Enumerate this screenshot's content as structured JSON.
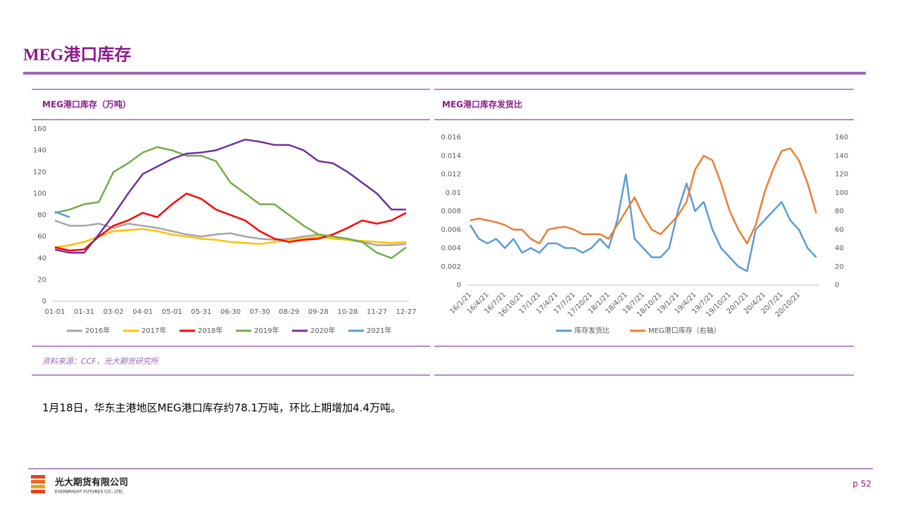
{
  "header": {
    "title": "MEG港口库存"
  },
  "source": "资料来源：CCF，光大期货研究所",
  "body": "1月18日，华东主港地区MEG港口库存约78.1万吨，环比上期增加4.4万吨。",
  "footer": {
    "company": "光大期货有限公司",
    "company_en": "EVERBRIGHT FUTURES CO., LTD.",
    "page": "p 52"
  },
  "chart_data": [
    {
      "type": "line",
      "title": "MEG港口库存（万吨）",
      "categories": [
        "01-01",
        null,
        "01-31",
        null,
        "03-02",
        null,
        "04-01",
        null,
        "05-01",
        null,
        "05-31",
        null,
        "06-30",
        null,
        "07-30",
        null,
        "08-29",
        null,
        "09-28",
        null,
        "10-28",
        null,
        "11-27",
        null,
        "12-27"
      ],
      "ylim": [
        0,
        160
      ],
      "yticks": [
        0,
        20,
        40,
        60,
        80,
        100,
        120,
        140,
        160
      ],
      "series": [
        {
          "name": "2016年",
          "color": "#a5a5a5",
          "values": [
            75,
            70,
            70,
            72,
            68,
            72,
            70,
            68,
            65,
            62,
            60,
            62,
            63,
            60,
            58,
            57,
            58,
            60,
            62,
            60,
            57,
            55,
            52,
            52,
            53
          ]
        },
        {
          "name": "2017年",
          "color": "#ffc000",
          "values": [
            50,
            52,
            55,
            60,
            65,
            66,
            67,
            65,
            62,
            60,
            58,
            57,
            55,
            54,
            53,
            55,
            57,
            58,
            60,
            58,
            57,
            56,
            55,
            54,
            55
          ]
        },
        {
          "name": "2018年",
          "color": "#ff0000",
          "values": [
            50,
            47,
            48,
            60,
            70,
            75,
            82,
            78,
            90,
            100,
            95,
            85,
            80,
            75,
            65,
            58,
            55,
            57,
            58,
            62,
            68,
            75,
            72,
            75,
            82
          ]
        },
        {
          "name": "2019年",
          "color": "#70ad47",
          "values": [
            82,
            85,
            90,
            92,
            120,
            128,
            138,
            143,
            140,
            135,
            135,
            130,
            110,
            100,
            90,
            90,
            80,
            70,
            62,
            60,
            58,
            55,
            45,
            40,
            50
          ]
        },
        {
          "name": "2020年",
          "color": "#7030a0",
          "values": [
            48,
            45,
            45,
            62,
            80,
            100,
            118,
            125,
            132,
            137,
            138,
            140,
            145,
            150,
            148,
            145,
            145,
            140,
            130,
            128,
            120,
            110,
            100,
            85,
            85
          ]
        },
        {
          "name": "2021年",
          "color": "#5b9bd5",
          "values": [
            83,
            78,
            null,
            null,
            null,
            null,
            null,
            null,
            null,
            null,
            null,
            null,
            null,
            null,
            null,
            null,
            null,
            null,
            null,
            null,
            null,
            null,
            null,
            null,
            null
          ]
        }
      ]
    },
    {
      "type": "line",
      "title": "MEG港口库存发货比",
      "categories": [
        "16/1/21",
        null,
        "16/4/21",
        null,
        "16/7/21",
        null,
        "16/10/21",
        null,
        "17/1/21",
        null,
        "17/4/21",
        null,
        "17/7/21",
        null,
        "17/10/21",
        null,
        "18/1/21",
        null,
        "18/4/21",
        null,
        "18/7/21",
        null,
        "18/10/21",
        null,
        "19/1/21",
        null,
        "19/4/21",
        null,
        "19/7/21",
        null,
        "19/10/21",
        null,
        "20/1/21",
        null,
        "20/4/21",
        null,
        "20/7/21",
        null,
        "20/10/21",
        null,
        null
      ],
      "ylim": [
        0,
        0.016
      ],
      "yticks": [
        0,
        0.002,
        0.004,
        0.006,
        0.008,
        0.01,
        0.012,
        0.014,
        0.016
      ],
      "y2lim": [
        0,
        160
      ],
      "y2ticks": [
        0,
        20,
        40,
        60,
        80,
        100,
        120,
        140,
        160
      ],
      "series": [
        {
          "name": "库存发货比",
          "color": "#5b9bd5",
          "values": [
            0.0065,
            0.005,
            0.0045,
            0.005,
            0.004,
            0.005,
            0.0035,
            0.004,
            0.0035,
            0.0045,
            0.0045,
            0.004,
            0.004,
            0.0035,
            0.004,
            0.005,
            0.004,
            0.007,
            0.012,
            0.005,
            0.004,
            0.003,
            0.003,
            0.004,
            0.008,
            0.011,
            0.008,
            0.009,
            0.006,
            0.004,
            0.003,
            0.002,
            0.0015,
            0.006,
            0.007,
            0.008,
            0.009,
            0.007,
            0.006,
            0.004,
            0.003
          ]
        },
        {
          "name": "MEG港口库存（右轴）",
          "color": "#ed7d31",
          "axis": "y2",
          "values": [
            70,
            72,
            70,
            68,
            65,
            60,
            60,
            50,
            45,
            60,
            62,
            63,
            60,
            55,
            55,
            55,
            50,
            65,
            80,
            95,
            75,
            60,
            55,
            65,
            75,
            90,
            125,
            140,
            135,
            110,
            80,
            60,
            45,
            65,
            100,
            125,
            145,
            148,
            135,
            110,
            78
          ]
        }
      ]
    }
  ]
}
